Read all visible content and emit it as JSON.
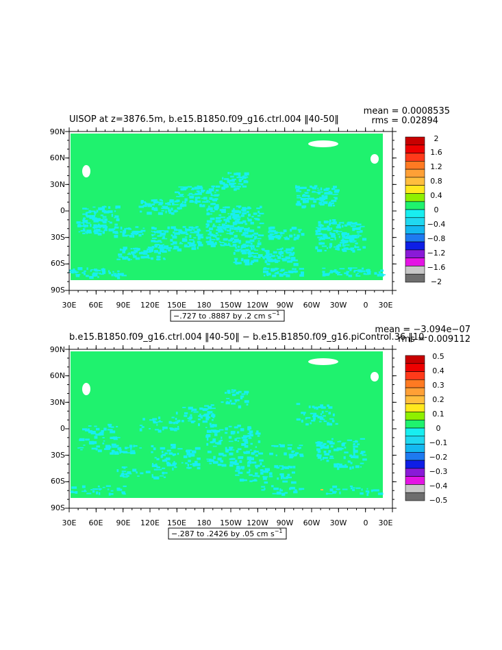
{
  "colors": {
    "land_background": "#1ff26e",
    "ocean_cyan": "#18eef0",
    "white_missing": "#ffffff"
  },
  "lat_labels": [
    "90N",
    "60N",
    "30N",
    "0",
    "30S",
    "60S",
    "90S"
  ],
  "lon_labels": [
    "30E",
    "60E",
    "90E",
    "120E",
    "150E",
    "180",
    "150W",
    "120W",
    "90W",
    "60W",
    "30W",
    "0",
    "30E"
  ],
  "chart_data": [
    {
      "type": "heatmap",
      "title_left": "UISOP at z=3876.5m, b.e15.B1850.f09_g16.ctrl.004 ‖40-50‖",
      "stat_mean": "mean = 0.0008535",
      "stat_rms": "rms = 0.02894",
      "contour_info": "−.727 to .8887 by .2 cm s",
      "contour_info_sup": "−1",
      "lat_range": [
        "90S",
        "90N"
      ],
      "lon_range": [
        "30E",
        "30E"
      ],
      "colorbar": {
        "labels": [
          "2",
          "1.6",
          "1.2",
          "0.8",
          "0.4",
          "0",
          "−0.4",
          "−0.8",
          "−1.2",
          "−1.6",
          "−2"
        ],
        "colors": [
          "#c80000",
          "#ee0000",
          "#ff3a1a",
          "#ff7a22",
          "#ffa036",
          "#ffbe3e",
          "#ffe81e",
          "#8ef000",
          "#1ff26e",
          "#18eef0",
          "#20d8f0",
          "#14b8f0",
          "#1e7af0",
          "#0e1ee6",
          "#8a1ad8",
          "#e414e4",
          "#c8c8c8",
          "#6e6e6e"
        ]
      }
    },
    {
      "type": "heatmap",
      "title_left": "b.e15.B1850.f09_g16.ctrl.004 ‖40-50‖ − b.e15.B1850.f09_g16.piControl.36 ‖10-",
      "stat_mean": "mean = −3.094e−07",
      "stat_rms": "rms = 0.009112",
      "contour_info": "−.287 to .2426 by .05 cm s",
      "contour_info_sup": "−1",
      "lat_range": [
        "90S",
        "90N"
      ],
      "lon_range": [
        "30E",
        "30E"
      ],
      "colorbar": {
        "labels": [
          "0.5",
          "0.4",
          "0.3",
          "0.2",
          "0.1",
          "0",
          "−0.1",
          "−0.2",
          "−0.3",
          "−0.4",
          "−0.5"
        ],
        "colors": [
          "#c80000",
          "#ee0000",
          "#ff3a1a",
          "#ff7a22",
          "#ffa036",
          "#ffbe3e",
          "#ffe81e",
          "#8ef000",
          "#1ff26e",
          "#18eef0",
          "#20d8f0",
          "#14b8f0",
          "#1e7af0",
          "#0e1ee6",
          "#8a1ad8",
          "#e414e4",
          "#c8c8c8",
          "#6e6e6e"
        ]
      }
    }
  ]
}
